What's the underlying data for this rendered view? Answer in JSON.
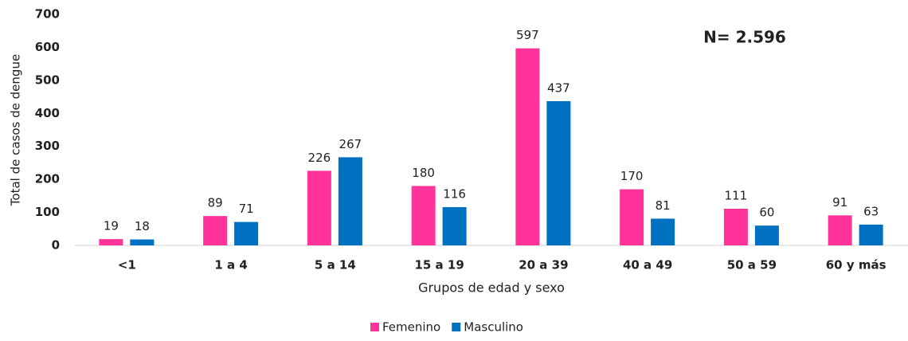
{
  "chart_data": {
    "type": "bar",
    "y_label": "Total de casos de dengue",
    "x_label": "Grupos de edad y sexo",
    "annotation": "N= 2.596",
    "categories": [
      "<1",
      "1 a 4",
      "5 a 14",
      "15 a 19",
      "20 a 39",
      "40 a 49",
      "50 a 59",
      "60 y más"
    ],
    "series": [
      {
        "name": "Femenino",
        "color": "#ff3399",
        "values": [
          19,
          89,
          226,
          180,
          597,
          170,
          111,
          91
        ]
      },
      {
        "name": "Masculino",
        "color": "#0070c0",
        "values": [
          18,
          71,
          267,
          116,
          437,
          81,
          60,
          63
        ]
      }
    ],
    "ylim": [
      0,
      700
    ],
    "yticks": [
      0,
      100,
      200,
      300,
      400,
      500,
      600,
      700
    ],
    "grid": false,
    "legend": "bottom"
  }
}
